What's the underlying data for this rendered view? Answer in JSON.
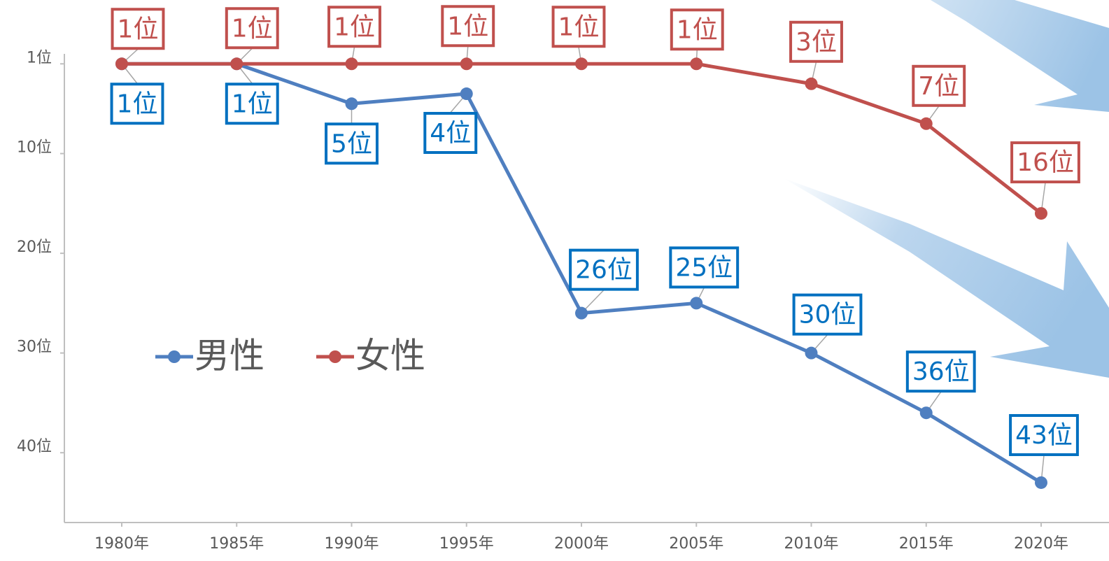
{
  "chart_data": {
    "type": "line",
    "categories": [
      "1980年",
      "1985年",
      "1990年",
      "1995年",
      "2000年",
      "2005年",
      "2010年",
      "2015年",
      "2020年"
    ],
    "series": [
      {
        "name": "男性",
        "color": "#4f7fc0",
        "label_color": "#0070c0",
        "values": [
          1,
          1,
          5,
          4,
          26,
          25,
          30,
          36,
          43
        ],
        "value_labels": [
          "1位",
          "1位",
          "5位",
          "4位",
          "26位",
          "25位",
          "30位",
          "36位",
          "43位"
        ]
      },
      {
        "name": "女性",
        "color": "#c0504d",
        "label_color": "#c0504d",
        "values": [
          1,
          1,
          1,
          1,
          1,
          1,
          3,
          7,
          16
        ],
        "value_labels": [
          "1位",
          "1位",
          "1位",
          "1位",
          "1位",
          "1位",
          "3位",
          "7位",
          "16位"
        ]
      }
    ],
    "ylim": [
      0,
      47
    ],
    "y_reversed": true,
    "yticks": [
      {
        "value": 1,
        "label": "1位"
      },
      {
        "value": 10,
        "label": "10位"
      },
      {
        "value": 20,
        "label": "20位"
      },
      {
        "value": 30,
        "label": "30位"
      },
      {
        "value": 40,
        "label": "40位"
      }
    ]
  }
}
